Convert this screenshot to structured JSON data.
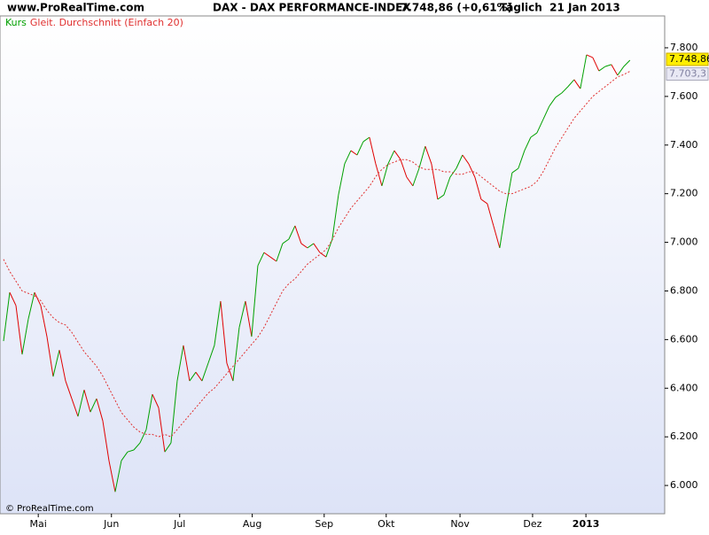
{
  "chart_data": {
    "type": "line",
    "site": "www.ProRealTime.com",
    "title": "DAX - DAX PERFORMANCE-INDEX",
    "quote": "7.748,86 (+0,61%)",
    "period": "Täglich  21 Jan 2013",
    "copyright": "© ProRealTime.com",
    "x": [
      0,
      1,
      2,
      3,
      4,
      5,
      6,
      7,
      8,
      9,
      10,
      11,
      12,
      13,
      14,
      15,
      16,
      17,
      18,
      19,
      20,
      21,
      22,
      23,
      24,
      25,
      26,
      27,
      28,
      29,
      30,
      31,
      32,
      33,
      34,
      35,
      36,
      37,
      38,
      39,
      40,
      41,
      42,
      43,
      44,
      45,
      46,
      47,
      48,
      49,
      50,
      51,
      52,
      53,
      54,
      55,
      56,
      57,
      58,
      59,
      60,
      61,
      62,
      63,
      64,
      65,
      66,
      67,
      68,
      69,
      70,
      71,
      72,
      73,
      74,
      75,
      76,
      77,
      78,
      79,
      80,
      81,
      82,
      83,
      84,
      85,
      86,
      87,
      88,
      89,
      90,
      91,
      92,
      93,
      94,
      95,
      96,
      97,
      98,
      99,
      100,
      101
    ],
    "xlim": [
      -0.57,
      106.6
    ],
    "xticks": [
      {
        "value": 5.6,
        "label": "Mai"
      },
      {
        "value": 17.4,
        "label": "Jun"
      },
      {
        "value": 28.4,
        "label": "Jul"
      },
      {
        "value": 40.1,
        "label": "Aug"
      },
      {
        "value": 51.7,
        "label": "Sep"
      },
      {
        "value": 61.7,
        "label": "Okt"
      },
      {
        "value": 73.6,
        "label": "Nov"
      },
      {
        "value": 85.3,
        "label": "Dez"
      },
      {
        "value": 93.9,
        "label": "2013"
      }
    ],
    "ylim": [
      5891,
      7931
    ],
    "yticks": [
      {
        "value": 6000,
        "label": "6.000"
      },
      {
        "value": 6200,
        "label": "6.200"
      },
      {
        "value": 6400,
        "label": "6.400"
      },
      {
        "value": 6600,
        "label": "6.600"
      },
      {
        "value": 6800,
        "label": "6.800"
      },
      {
        "value": 7000,
        "label": "7.000"
      },
      {
        "value": 7200,
        "label": "7.200"
      },
      {
        "value": 7400,
        "label": "7.400"
      },
      {
        "value": 7600,
        "label": "7.600"
      },
      {
        "value": 7800,
        "label": "7.800"
      }
    ],
    "series": [
      {
        "name": "Kurs",
        "color": "#00a000",
        "down_color": "#e00000",
        "last_label": "7.748,86",
        "label_fill": "#ffee00",
        "values": [
          6594,
          6794,
          6740,
          6539,
          6685,
          6794,
          6740,
          6612,
          6448,
          6557,
          6430,
          6357,
          6284,
          6393,
          6302,
          6357,
          6266,
          6102,
          5974,
          6102,
          6138,
          6146,
          6175,
          6229,
          6375,
          6320,
          6138,
          6175,
          6430,
          6576,
          6430,
          6466,
          6430,
          6503,
          6576,
          6758,
          6503,
          6430,
          6649,
          6758,
          6612,
          6904,
          6958,
          6940,
          6922,
          6995,
          7013,
          7068,
          6995,
          6977,
          6995,
          6958,
          6940,
          7013,
          7195,
          7323,
          7377,
          7359,
          7414,
          7432,
          7323,
          7232,
          7323,
          7377,
          7341,
          7268,
          7232,
          7304,
          7395,
          7323,
          7177,
          7195,
          7268,
          7304,
          7359,
          7323,
          7268,
          7177,
          7159,
          7068,
          6977,
          7141,
          7286,
          7304,
          7377,
          7432,
          7450,
          7505,
          7560,
          7596,
          7614,
          7640,
          7669,
          7632,
          7771,
          7760,
          7705,
          7723,
          7731,
          7687,
          7723,
          7748.86
        ]
      },
      {
        "name": "Gleit. Durchschnitt (Einfach 20)",
        "color": "#e03030",
        "last_label": "7.703,3",
        "label_fill": "#e8e8f4",
        "values": [
          6930,
          6880,
          6840,
          6800,
          6790,
          6780,
          6760,
          6720,
          6690,
          6670,
          6660,
          6630,
          6590,
          6550,
          6520,
          6490,
          6450,
          6400,
          6350,
          6300,
          6270,
          6240,
          6220,
          6210,
          6210,
          6200,
          6210,
          6200,
          6230,
          6260,
          6290,
          6320,
          6350,
          6380,
          6400,
          6430,
          6460,
          6490,
          6520,
          6550,
          6580,
          6610,
          6650,
          6700,
          6750,
          6800,
          6830,
          6850,
          6880,
          6910,
          6930,
          6950,
          6970,
          7010,
          7060,
          7100,
          7140,
          7170,
          7200,
          7230,
          7270,
          7300,
          7320,
          7330,
          7340,
          7340,
          7330,
          7310,
          7300,
          7300,
          7300,
          7290,
          7290,
          7280,
          7280,
          7290,
          7290,
          7270,
          7250,
          7230,
          7210,
          7200,
          7200,
          7210,
          7220,
          7230,
          7250,
          7290,
          7340,
          7390,
          7430,
          7470,
          7510,
          7540,
          7570,
          7600,
          7620,
          7640,
          7660,
          7680,
          7690,
          7703.3
        ]
      }
    ]
  }
}
